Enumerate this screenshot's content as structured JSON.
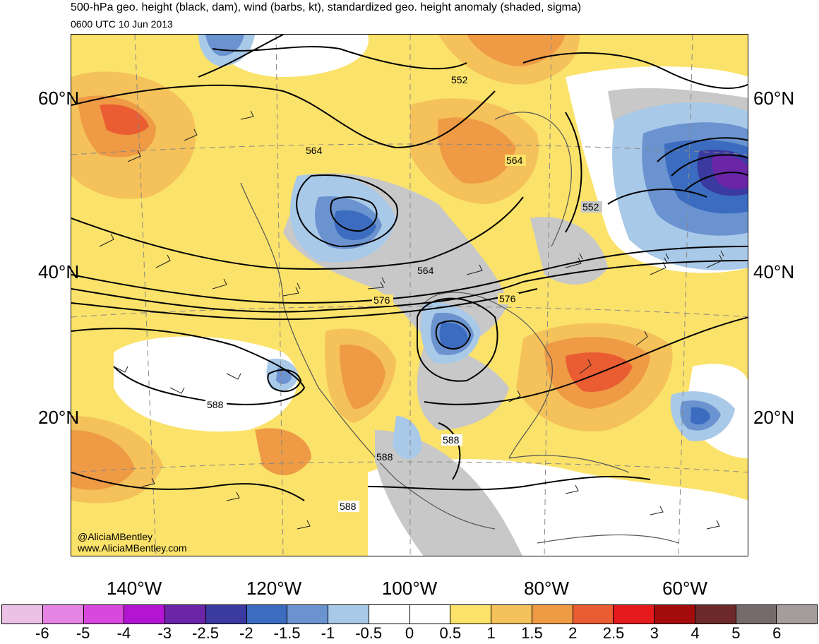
{
  "title": "500-hPa geo. height (black, dam), wind (barbs, kt), standardized geo. height anomaly (shaded, sigma)",
  "subtitle": "0600 UTC 10 Jun 2013",
  "credit": {
    "handle": "@AliciaMBentley",
    "site": "www.AliciaMBentley.com"
  },
  "lat_labels": [
    "60°N",
    "40°N",
    "20°N"
  ],
  "lon_labels": [
    "140°W",
    "120°W",
    "100°W",
    "80°W",
    "60°W"
  ],
  "contour_labels": [
    "552",
    "564",
    "564",
    "552",
    "564",
    "576",
    "576",
    "588",
    "588",
    "588",
    "588"
  ],
  "colorbar": {
    "colors": [
      "#ebc1e6",
      "#e584e3",
      "#d848dd",
      "#b415d2",
      "#6a26a6",
      "#3a3aa0",
      "#3b6cbf",
      "#6b93d0",
      "#a8c9e8",
      "#ffffff",
      "#ffffff",
      "#fbe26a",
      "#f4c15a",
      "#ef9a45",
      "#ea5d32",
      "#e41a1c",
      "#a40c0c",
      "#6e2a2a",
      "#766a6a",
      "#a59c9c"
    ],
    "labels": [
      "-6",
      "-5",
      "-4",
      "-3",
      "-2.5",
      "-2",
      "-1.5",
      "-1",
      "-0.5",
      "0",
      "0.5",
      "1",
      "1.5",
      "2",
      "2.5",
      "3",
      "4",
      "5",
      "6"
    ]
  }
}
